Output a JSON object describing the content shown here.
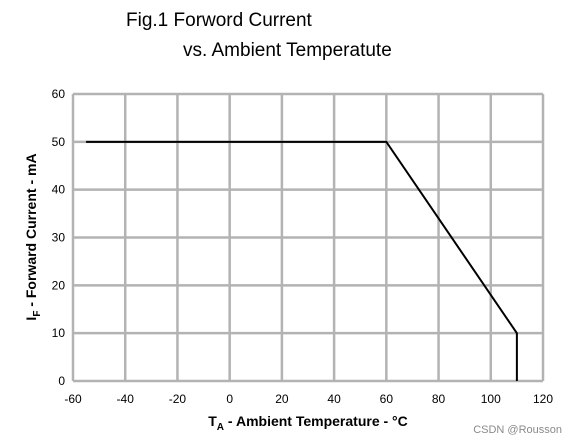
{
  "chart_data": {
    "type": "line",
    "title_line1": "Fig.1 Forword Current",
    "title_line2": "vs. Ambient Temperatute",
    "xlabel": {
      "main": "T",
      "sub": "A",
      "rest": " - Ambient Temperature  - °C"
    },
    "ylabel": {
      "main": "I",
      "sub": "F",
      "rest": " - Forward Current - mA"
    },
    "xlim": [
      -60,
      120
    ],
    "ylim": [
      0,
      60
    ],
    "xticks": [
      -60,
      -40,
      -20,
      0,
      20,
      40,
      60,
      80,
      100,
      120
    ],
    "yticks": [
      0,
      10,
      20,
      30,
      40,
      50,
      60
    ],
    "grid": true,
    "series": [
      {
        "line_color": "#000000",
        "x": [
          -55,
          60,
          110,
          110
        ],
        "y": [
          50,
          50,
          10,
          0
        ]
      }
    ]
  },
  "watermark": "CSDN @Rousson"
}
